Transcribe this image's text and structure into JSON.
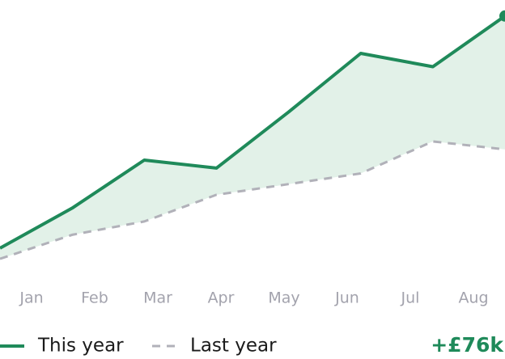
{
  "chart_data": {
    "type": "line",
    "categories": [
      "Jan",
      "Feb",
      "Mar",
      "Apr",
      "May",
      "Jun",
      "Jul",
      "Aug"
    ],
    "series": [
      {
        "name": "This year",
        "color": "#1f8a5a",
        "values": [
          7,
          22,
          40,
          37,
          58,
          80,
          75,
          94
        ]
      },
      {
        "name": "Last year",
        "color": "#b1b1b9",
        "dashed": true,
        "values": [
          3,
          12,
          17,
          27,
          31,
          35,
          47,
          44
        ]
      }
    ],
    "ylim": [
      0,
      100
    ],
    "fill_between": "#e2f1e8",
    "legend": "bottom-left",
    "annotation": "+£76k"
  }
}
